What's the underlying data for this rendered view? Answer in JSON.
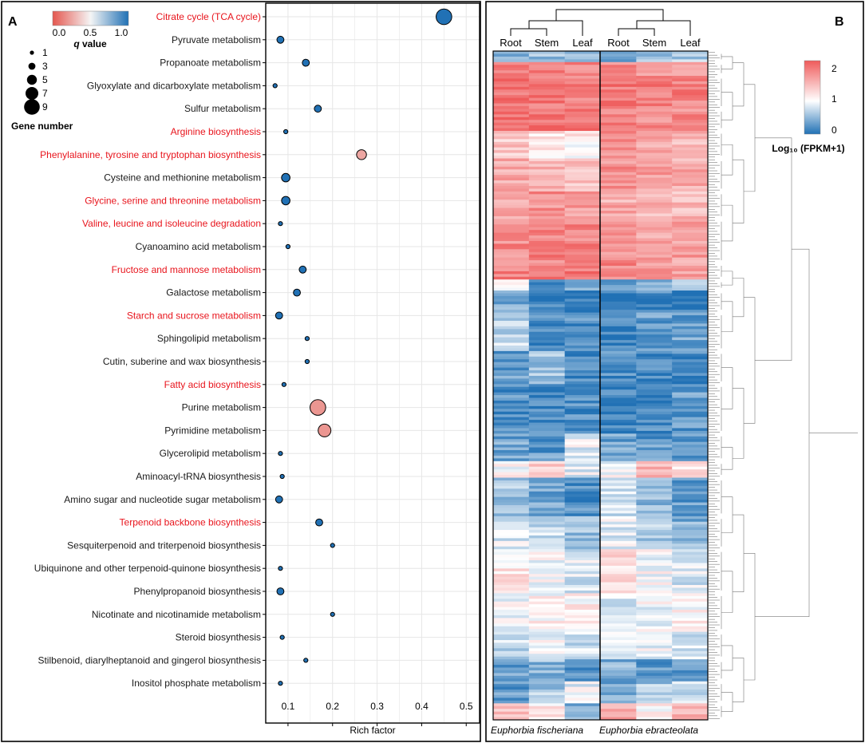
{
  "chart_data": [
    {
      "panel_label": "A",
      "type": "scatter",
      "subtype": "enrichment-bubble",
      "xlabel": "Rich factor",
      "xlim": [
        0.05,
        0.53
      ],
      "xticks": [
        0.1,
        0.2,
        0.3,
        0.4,
        0.5
      ],
      "xtick_labels": [
        "0.1",
        "0.2",
        "0.3",
        "0.4",
        "0.5"
      ],
      "grid": true,
      "colors": {
        "highlight": "#e8141c",
        "normal": "#1a1a1a",
        "low": "#e4574f",
        "mid": "#f5f5f5",
        "high": "#2171b5"
      },
      "color_legend": {
        "title": "q value",
        "ticks": [
          "0.0",
          "0.5",
          "1.0"
        ],
        "range": [
          0,
          1
        ]
      },
      "size_legend": {
        "title": "Gene number",
        "values": [
          1,
          3,
          5,
          7,
          9
        ]
      },
      "pathways": [
        {
          "name": "Citrate cycle (TCA cycle)",
          "rich_factor": 0.45,
          "q_value": 1.0,
          "gene_number": 9,
          "highlight": true
        },
        {
          "name": "Pyruvate metabolism",
          "rich_factor": 0.083,
          "q_value": 1.0,
          "gene_number": 3,
          "highlight": false
        },
        {
          "name": "Propanoate metabolism",
          "rich_factor": 0.14,
          "q_value": 1.0,
          "gene_number": 3,
          "highlight": false
        },
        {
          "name": "Glyoxylate and dicarboxylate metabolism",
          "rich_factor": 0.071,
          "q_value": 1.0,
          "gene_number": 1,
          "highlight": false
        },
        {
          "name": "Sulfur metabolism",
          "rich_factor": 0.167,
          "q_value": 1.0,
          "gene_number": 3,
          "highlight": false
        },
        {
          "name": "Arginine biosynthesis",
          "rich_factor": 0.095,
          "q_value": 1.0,
          "gene_number": 1,
          "highlight": true
        },
        {
          "name": "Phenylalanine, tyrosine and tryptophan biosynthesis",
          "rich_factor": 0.265,
          "q_value": 0.25,
          "gene_number": 5,
          "highlight": true
        },
        {
          "name": "Cysteine and methionine metabolism",
          "rich_factor": 0.095,
          "q_value": 1.0,
          "gene_number": 4,
          "highlight": false
        },
        {
          "name": "Glycine, serine and threonine metabolism",
          "rich_factor": 0.095,
          "q_value": 1.0,
          "gene_number": 4,
          "highlight": true
        },
        {
          "name": "Valine, leucine and isoleucine degradation",
          "rich_factor": 0.083,
          "q_value": 1.0,
          "gene_number": 1,
          "highlight": true
        },
        {
          "name": "Cyanoamino acid metabolism",
          "rich_factor": 0.1,
          "q_value": 1.0,
          "gene_number": 1,
          "highlight": false
        },
        {
          "name": "Fructose and mannose metabolism",
          "rich_factor": 0.133,
          "q_value": 1.0,
          "gene_number": 3,
          "highlight": true
        },
        {
          "name": "Galactose metabolism",
          "rich_factor": 0.12,
          "q_value": 1.0,
          "gene_number": 3,
          "highlight": false
        },
        {
          "name": "Starch and sucrose metabolism",
          "rich_factor": 0.08,
          "q_value": 1.0,
          "gene_number": 3,
          "highlight": true
        },
        {
          "name": "Sphingolipid metabolism",
          "rich_factor": 0.143,
          "q_value": 1.0,
          "gene_number": 1,
          "highlight": false
        },
        {
          "name": "Cutin, suberine and wax biosynthesis",
          "rich_factor": 0.143,
          "q_value": 1.0,
          "gene_number": 1,
          "highlight": false
        },
        {
          "name": "Fatty acid biosynthesis",
          "rich_factor": 0.091,
          "q_value": 1.0,
          "gene_number": 1,
          "highlight": true
        },
        {
          "name": "Purine metabolism",
          "rich_factor": 0.167,
          "q_value": 0.2,
          "gene_number": 9,
          "highlight": false
        },
        {
          "name": "Pyrimidine metabolism",
          "rich_factor": 0.182,
          "q_value": 0.2,
          "gene_number": 7,
          "highlight": false
        },
        {
          "name": "Glycerolipid metabolism",
          "rich_factor": 0.083,
          "q_value": 1.0,
          "gene_number": 1,
          "highlight": false
        },
        {
          "name": "Aminoacyl-tRNA biosynthesis",
          "rich_factor": 0.087,
          "q_value": 1.0,
          "gene_number": 1,
          "highlight": false
        },
        {
          "name": "Amino sugar and nucleotide sugar metabolism",
          "rich_factor": 0.08,
          "q_value": 1.0,
          "gene_number": 3,
          "highlight": false
        },
        {
          "name": "Terpenoid backbone biosynthesis",
          "rich_factor": 0.17,
          "q_value": 1.0,
          "gene_number": 3,
          "highlight": true
        },
        {
          "name": "Sesquiterpenoid and triterpenoid biosynthesis",
          "rich_factor": 0.2,
          "q_value": 1.0,
          "gene_number": 1,
          "highlight": false
        },
        {
          "name": "Ubiquinone and other terpenoid-quinone biosynthesis",
          "rich_factor": 0.083,
          "q_value": 1.0,
          "gene_number": 1,
          "highlight": false
        },
        {
          "name": "Phenylpropanoid biosynthesis",
          "rich_factor": 0.083,
          "q_value": 1.0,
          "gene_number": 3,
          "highlight": false
        },
        {
          "name": "Nicotinate and nicotinamide metabolism",
          "rich_factor": 0.2,
          "q_value": 1.0,
          "gene_number": 1,
          "highlight": false
        },
        {
          "name": "Steroid biosynthesis",
          "rich_factor": 0.087,
          "q_value": 1.0,
          "gene_number": 1,
          "highlight": false
        },
        {
          "name": "Stilbenoid, diarylheptanoid and gingerol biosynthesis",
          "rich_factor": 0.14,
          "q_value": 1.0,
          "gene_number": 1,
          "highlight": false
        },
        {
          "name": "Inositol phosphate metabolism",
          "rich_factor": 0.083,
          "q_value": 1.0,
          "gene_number": 1,
          "highlight": false
        }
      ]
    },
    {
      "panel_label": "B",
      "type": "heatmap",
      "columns": [
        "Root",
        "Stem",
        "Leaf",
        "Root",
        "Stem",
        "Leaf"
      ],
      "groups": [
        {
          "name": "Euphorbia fischeriana",
          "columns": [
            0,
            1,
            2
          ]
        },
        {
          "name": "Euphorbia ebracteolata",
          "columns": [
            3,
            4,
            5
          ]
        }
      ],
      "colorbar": {
        "title": "Log₁₀ (FPKM+1)",
        "range": [
          0,
          2.2
        ],
        "ticks": [
          0,
          1,
          2
        ],
        "tick_labels": [
          "0",
          "1",
          "2"
        ],
        "low": "#2171b5",
        "mid": "#ffffff",
        "high": "#ef5b5b"
      },
      "row_blocks": [
        {
          "rows": 4,
          "values": [
            0.5,
            0.55,
            0.6,
            0.45,
            0.5,
            0.6
          ]
        },
        {
          "rows": 5,
          "values": [
            2.0,
            1.9,
            1.85,
            1.8,
            1.75,
            1.7
          ]
        },
        {
          "rows": 12,
          "values": [
            2.05,
            2.0,
            1.95,
            2.0,
            1.95,
            1.9
          ]
        },
        {
          "rows": 8,
          "values": [
            2.1,
            2.05,
            2.0,
            1.9,
            1.85,
            1.85
          ]
        },
        {
          "rows": 10,
          "values": [
            1.4,
            1.2,
            1.1,
            1.75,
            1.6,
            1.55
          ]
        },
        {
          "rows": 12,
          "values": [
            1.6,
            1.5,
            1.45,
            1.8,
            1.7,
            1.6
          ]
        },
        {
          "rows": 10,
          "values": [
            1.7,
            1.8,
            1.75,
            1.6,
            1.5,
            1.5
          ]
        },
        {
          "rows": 16,
          "values": [
            1.85,
            1.9,
            1.9,
            1.8,
            1.7,
            1.7
          ]
        },
        {
          "rows": 6,
          "values": [
            1.9,
            1.95,
            2.0,
            1.85,
            1.8,
            1.75
          ]
        },
        {
          "rows": 4,
          "values": [
            0.9,
            0.3,
            0.4,
            0.3,
            0.4,
            0.5
          ]
        },
        {
          "rows": 8,
          "values": [
            0.4,
            0.1,
            0.15,
            0.1,
            0.15,
            0.1
          ]
        },
        {
          "rows": 14,
          "values": [
            0.7,
            0.2,
            0.2,
            0.1,
            0.3,
            0.35
          ]
        },
        {
          "rows": 12,
          "values": [
            0.3,
            0.55,
            0.15,
            0.2,
            0.2,
            0.15
          ]
        },
        {
          "rows": 18,
          "values": [
            0.25,
            0.15,
            0.2,
            0.1,
            0.15,
            0.3
          ]
        },
        {
          "rows": 10,
          "values": [
            0.35,
            0.3,
            0.9,
            0.35,
            0.3,
            0.25
          ]
        },
        {
          "rows": 6,
          "values": [
            1.0,
            1.4,
            0.9,
            1.0,
            1.5,
            1.2
          ]
        },
        {
          "rows": 14,
          "values": [
            0.6,
            0.4,
            0.2,
            0.8,
            0.45,
            0.3
          ]
        },
        {
          "rows": 12,
          "values": [
            0.85,
            0.75,
            0.55,
            0.9,
            0.6,
            0.45
          ]
        },
        {
          "rows": 16,
          "values": [
            1.15,
            1.0,
            0.85,
            1.25,
            1.0,
            0.85
          ]
        },
        {
          "rows": 14,
          "values": [
            0.95,
            1.05,
            1.1,
            0.9,
            0.95,
            1.05
          ]
        },
        {
          "rows": 10,
          "values": [
            0.7,
            0.95,
            0.75,
            0.95,
            0.9,
            0.8
          ]
        },
        {
          "rows": 8,
          "values": [
            0.3,
            0.5,
            0.25,
            0.45,
            0.3,
            0.35
          ]
        },
        {
          "rows": 8,
          "values": [
            0.3,
            0.6,
            0.9,
            0.4,
            0.6,
            0.8
          ]
        },
        {
          "rows": 6,
          "values": [
            1.5,
            1.2,
            0.4,
            1.6,
            1.1,
            1.5
          ]
        }
      ]
    }
  ]
}
